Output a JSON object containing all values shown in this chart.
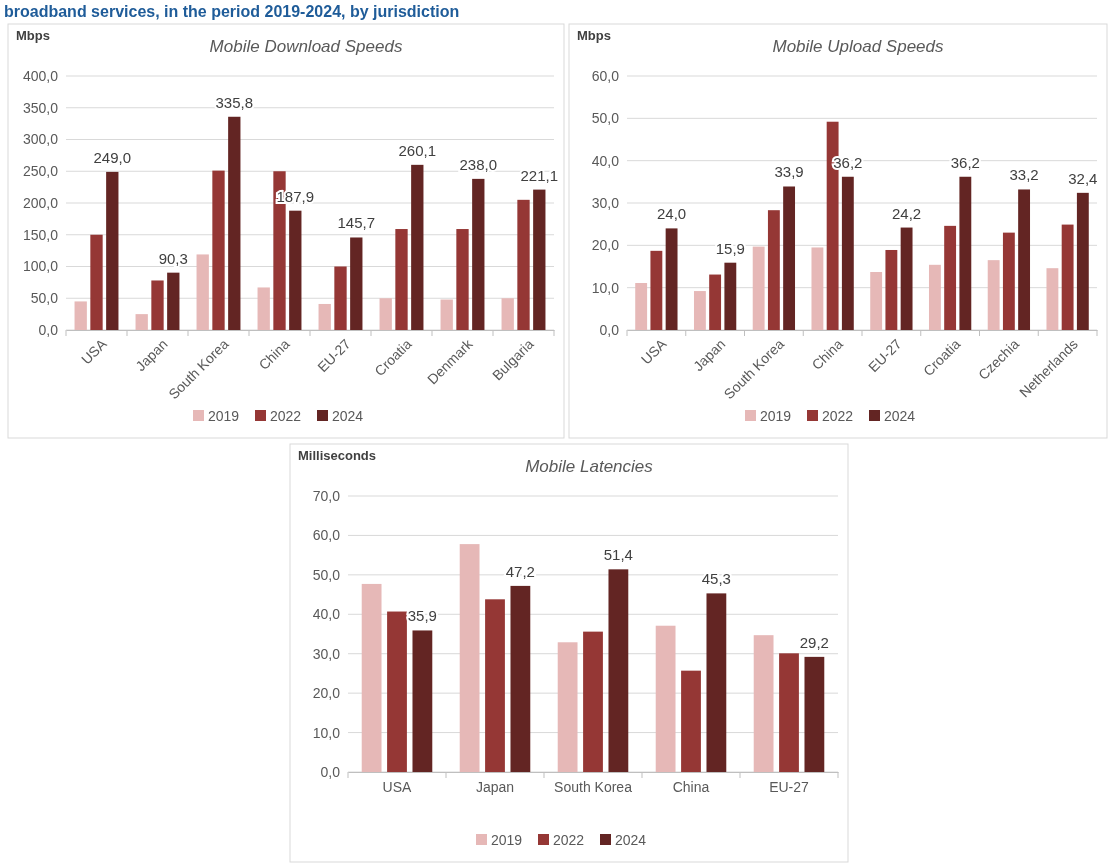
{
  "chart_data": [
    {
      "type": "bar",
      "title": "Mobile Download Speeds",
      "ylabel": "Mbps",
      "annotations": [
        "broadband services, in the period 2019-2024, by jurisdiction"
      ],
      "categories": [
        "USA",
        "Japan",
        "South Korea",
        "China",
        "EU-27",
        "Croatia",
        "Denmark",
        "Bulgaria"
      ],
      "series": [
        {
          "name": "2019",
          "color": "#e6b8b7",
          "values": [
            45,
            25,
            119,
            67,
            41,
            50,
            48,
            50
          ]
        },
        {
          "name": "2022",
          "color": "#953735",
          "values": [
            150,
            78,
            251,
            250,
            100,
            159,
            159,
            205
          ]
        },
        {
          "name": "2024",
          "color": "#632523",
          "values": [
            249.0,
            90.3,
            335.8,
            187.9,
            145.7,
            260.1,
            238.0,
            221.1
          ],
          "value_labels": [
            "249,0",
            "90,3",
            "335,8",
            "187,9",
            "145,7",
            "260,1",
            "238,0",
            "221,1"
          ]
        }
      ],
      "ylim": [
        0,
        400
      ],
      "yticks": [
        {
          "value": 0,
          "label": "0,0"
        },
        {
          "value": 50,
          "label": "50,0"
        },
        {
          "value": 100,
          "label": "100,0"
        },
        {
          "value": 150,
          "label": "150,0"
        },
        {
          "value": 200,
          "label": "200,0"
        },
        {
          "value": 250,
          "label": "250,0"
        },
        {
          "value": 300,
          "label": "300,0"
        },
        {
          "value": 350,
          "label": "350,0"
        },
        {
          "value": 400,
          "label": "400,0"
        }
      ],
      "grid": "y",
      "legend": "bottom"
    },
    {
      "type": "bar",
      "title": "Mobile Upload Speeds",
      "ylabel": "Mbps",
      "categories": [
        "USA",
        "Japan",
        "South Korea",
        "China",
        "EU-27",
        "Croatia",
        "Czechia",
        "Netherlands"
      ],
      "series": [
        {
          "name": "2019",
          "color": "#e6b8b7",
          "values": [
            11.1,
            9.2,
            19.7,
            19.5,
            13.7,
            15.4,
            16.5,
            14.6
          ]
        },
        {
          "name": "2022",
          "color": "#953735",
          "values": [
            18.7,
            13.1,
            28.3,
            49.2,
            18.9,
            24.6,
            23.0,
            24.9
          ]
        },
        {
          "name": "2024",
          "color": "#632523",
          "values": [
            24.0,
            15.9,
            33.9,
            36.2,
            24.2,
            36.2,
            33.2,
            32.4
          ],
          "value_labels": [
            "24,0",
            "15,9",
            "33,9",
            "36,2",
            "24,2",
            "36,2",
            "33,2",
            "32,4"
          ]
        }
      ],
      "ylim": [
        0,
        60
      ],
      "yticks": [
        {
          "value": 0,
          "label": "0,0"
        },
        {
          "value": 10,
          "label": "10,0"
        },
        {
          "value": 20,
          "label": "20,0"
        },
        {
          "value": 30,
          "label": "30,0"
        },
        {
          "value": 40,
          "label": "40,0"
        },
        {
          "value": 50,
          "label": "50,0"
        },
        {
          "value": 60,
          "label": "60,0"
        }
      ],
      "grid": "y",
      "legend": "bottom"
    },
    {
      "type": "bar",
      "title": "Mobile Latencies",
      "ylabel": "Milliseconds",
      "categories": [
        "USA",
        "Japan",
        "South Korea",
        "China",
        "EU-27"
      ],
      "series": [
        {
          "name": "2019",
          "color": "#e6b8b7",
          "values": [
            47.7,
            57.8,
            32.9,
            37.1,
            34.7
          ]
        },
        {
          "name": "2022",
          "color": "#953735",
          "values": [
            40.7,
            43.8,
            35.6,
            25.7,
            30.1
          ]
        },
        {
          "name": "2024",
          "color": "#632523",
          "values": [
            35.9,
            47.2,
            51.4,
            45.3,
            29.2
          ],
          "value_labels": [
            "35,9",
            "47,2",
            "51,4",
            "45,3",
            "29,2"
          ]
        }
      ],
      "ylim": [
        0,
        70
      ],
      "yticks": [
        {
          "value": 0,
          "label": "0,0"
        },
        {
          "value": 10,
          "label": "10,0"
        },
        {
          "value": 20,
          "label": "20,0"
        },
        {
          "value": 30,
          "label": "30,0"
        },
        {
          "value": 40,
          "label": "40,0"
        },
        {
          "value": 50,
          "label": "50,0"
        },
        {
          "value": 60,
          "label": "60,0"
        },
        {
          "value": 70,
          "label": "70,0"
        }
      ],
      "grid": "y",
      "legend": "bottom"
    }
  ]
}
